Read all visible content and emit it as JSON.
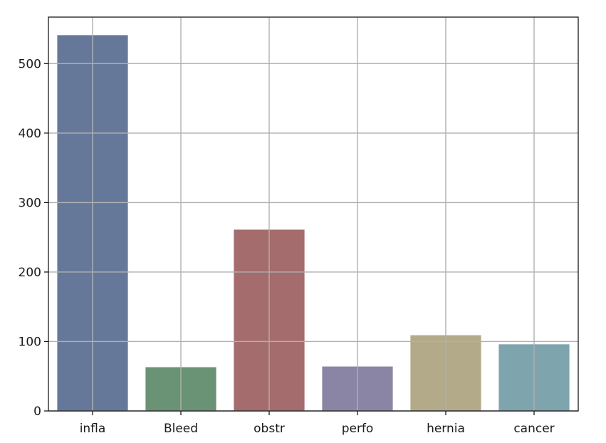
{
  "chart_data": {
    "type": "bar",
    "title": "",
    "xlabel": "",
    "ylabel": "",
    "categories": [
      "infla",
      "Bleed",
      "obstr",
      "perfo",
      "hernia",
      "cancer"
    ],
    "values": [
      541,
      63,
      261,
      64,
      109,
      96
    ],
    "colors": [
      "#66789a",
      "#6a9274",
      "#a46c6c",
      "#8a85a4",
      "#b2aa88",
      "#7ea4ae"
    ],
    "ylim": [
      0,
      567
    ],
    "yticks": [
      0,
      100,
      200,
      300,
      400,
      500
    ],
    "grid": true,
    "legend": "none"
  }
}
